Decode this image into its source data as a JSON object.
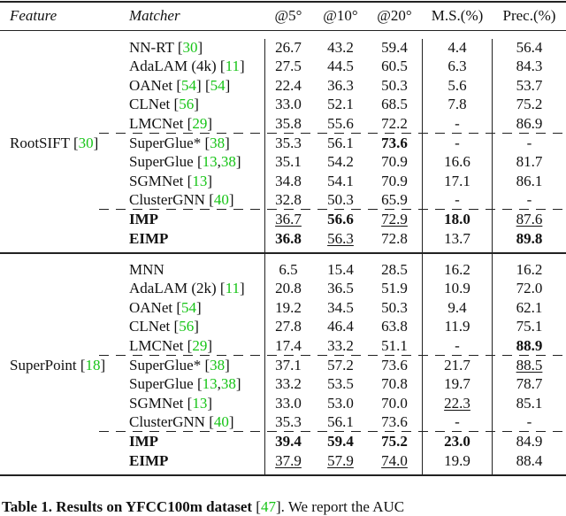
{
  "table": {
    "headers": {
      "feature": "Feature",
      "matcher": "Matcher",
      "auc5": "@5°",
      "auc10": "@10°",
      "auc20": "@20°",
      "ms": "M.S.(%)",
      "prec": "Prec.(%)"
    },
    "colors": {
      "citation": "#16c416"
    },
    "sections": [
      {
        "feature": "RootSIFT",
        "feature_cites": [
          [
            "30"
          ]
        ],
        "rows": [
          {
            "matcher": "NN-RT",
            "cites": [
              [
                "30"
              ]
            ],
            "values": [
              "26.7",
              "43.2",
              "59.4",
              "4.4",
              "56.4"
            ],
            "styles": [
              "",
              "",
              "",
              "",
              ""
            ]
          },
          {
            "matcher": "AdaLAM (4k)",
            "cites": [
              [
                "11"
              ]
            ],
            "values": [
              "27.5",
              "44.5",
              "60.5",
              "6.3",
              "84.3"
            ],
            "styles": [
              "",
              "",
              "",
              "",
              ""
            ]
          },
          {
            "matcher": "OANet",
            "cites": [
              [
                "54"
              ],
              [
                "54"
              ]
            ],
            "values": [
              "22.4",
              "36.3",
              "50.3",
              "5.6",
              "53.7"
            ],
            "styles": [
              "",
              "",
              "",
              "",
              ""
            ]
          },
          {
            "matcher": "CLNet",
            "cites": [
              [
                "56"
              ]
            ],
            "values": [
              "33.0",
              "52.1",
              "68.5",
              "7.8",
              "75.2"
            ],
            "styles": [
              "",
              "",
              "",
              "",
              ""
            ]
          },
          {
            "matcher": "LMCNet",
            "cites": [
              [
                "29"
              ]
            ],
            "values": [
              "35.8",
              "55.6",
              "72.2",
              "-",
              "86.9"
            ],
            "styles": [
              "",
              "",
              "",
              "",
              ""
            ]
          },
          {
            "matcher": "SuperGlue*",
            "cites": [
              [
                "38"
              ]
            ],
            "values": [
              "35.3",
              "56.1",
              "73.6",
              "-",
              "-"
            ],
            "styles": [
              "",
              "",
              "b",
              "",
              ""
            ],
            "dashed_above": true
          },
          {
            "matcher": "SuperGlue",
            "cites": [
              [
                "13",
                "38"
              ]
            ],
            "values": [
              "35.1",
              "54.2",
              "70.9",
              "16.6",
              "81.7"
            ],
            "styles": [
              "",
              "",
              "",
              "",
              ""
            ]
          },
          {
            "matcher": "SGMNet",
            "cites": [
              [
                "13"
              ]
            ],
            "values": [
              "34.8",
              "54.1",
              "70.9",
              "17.1",
              "86.1"
            ],
            "styles": [
              "",
              "",
              "",
              "",
              ""
            ]
          },
          {
            "matcher": "ClusterGNN",
            "cites": [
              [
                "40"
              ]
            ],
            "values": [
              "32.8",
              "50.3",
              "65.9",
              "-",
              "-"
            ],
            "styles": [
              "",
              "",
              "",
              "",
              ""
            ]
          },
          {
            "matcher": "IMP",
            "bold": true,
            "cites": [],
            "values": [
              "36.7",
              "56.6",
              "72.9",
              "18.0",
              "87.6"
            ],
            "styles": [
              "u",
              "b",
              "u",
              "b",
              "u"
            ],
            "dashed_above": true
          },
          {
            "matcher": "EIMP",
            "bold": true,
            "cites": [],
            "values": [
              "36.8",
              "56.3",
              "72.8",
              "13.7",
              "89.8"
            ],
            "styles": [
              "b",
              "u",
              "",
              "",
              "b"
            ]
          }
        ]
      },
      {
        "feature": "SuperPoint",
        "feature_cites": [
          [
            "18"
          ]
        ],
        "rows": [
          {
            "matcher": "MNN",
            "cites": [],
            "values": [
              "6.5",
              "15.4",
              "28.5",
              "16.2",
              "16.2"
            ],
            "styles": [
              "",
              "",
              "",
              "",
              ""
            ]
          },
          {
            "matcher": "AdaLAM (2k)",
            "cites": [
              [
                "11"
              ]
            ],
            "values": [
              "20.8",
              "36.5",
              "51.9",
              "10.9",
              "72.0"
            ],
            "styles": [
              "",
              "",
              "",
              "",
              ""
            ]
          },
          {
            "matcher": "OANet",
            "cites": [
              [
                "54"
              ]
            ],
            "values": [
              "19.2",
              "34.5",
              "50.3",
              "9.4",
              "62.1"
            ],
            "styles": [
              "",
              "",
              "",
              "",
              ""
            ]
          },
          {
            "matcher": "CLNet",
            "cites": [
              [
                "56"
              ]
            ],
            "values": [
              "27.8",
              "46.4",
              "63.8",
              "11.9",
              "75.1"
            ],
            "styles": [
              "",
              "",
              "",
              "",
              ""
            ]
          },
          {
            "matcher": "LMCNet",
            "cites": [
              [
                "29"
              ]
            ],
            "values": [
              "17.4",
              "33.2",
              "51.1",
              "-",
              "88.9"
            ],
            "styles": [
              "",
              "",
              "",
              "",
              "b"
            ]
          },
          {
            "matcher": "SuperGlue*",
            "cites": [
              [
                "38"
              ]
            ],
            "values": [
              "37.1",
              "57.2",
              "73.6",
              "21.7",
              "88.5"
            ],
            "styles": [
              "",
              "",
              "",
              "",
              "u"
            ],
            "dashed_above": true
          },
          {
            "matcher": "SuperGlue",
            "cites": [
              [
                "13",
                "38"
              ]
            ],
            "values": [
              "33.2",
              "53.5",
              "70.8",
              "19.7",
              "78.7"
            ],
            "styles": [
              "",
              "",
              "",
              "",
              ""
            ]
          },
          {
            "matcher": "SGMNet",
            "cites": [
              [
                "13"
              ]
            ],
            "values": [
              "33.0",
              "53.0",
              "70.0",
              "22.3",
              "85.1"
            ],
            "styles": [
              "",
              "",
              "",
              "u",
              ""
            ]
          },
          {
            "matcher": "ClusterGNN",
            "cites": [
              [
                "40"
              ]
            ],
            "values": [
              "35.3",
              "56.1",
              "73.6",
              "-",
              "-"
            ],
            "styles": [
              "",
              "",
              "",
              "",
              ""
            ]
          },
          {
            "matcher": "IMP",
            "bold": true,
            "cites": [],
            "values": [
              "39.4",
              "59.4",
              "75.2",
              "23.0",
              "84.9"
            ],
            "styles": [
              "b",
              "b",
              "b",
              "b",
              ""
            ],
            "dashed_above": true
          },
          {
            "matcher": "EIMP",
            "bold": true,
            "cites": [],
            "values": [
              "37.9",
              "57.9",
              "74.0",
              "19.9",
              "88.4"
            ],
            "styles": [
              "u",
              "u",
              "u",
              "",
              ""
            ]
          }
        ]
      }
    ]
  },
  "caption": {
    "label": "Table 1.",
    "title": "Results on YFCC100m dataset",
    "cite": "47",
    "text": "We report the AUC"
  }
}
